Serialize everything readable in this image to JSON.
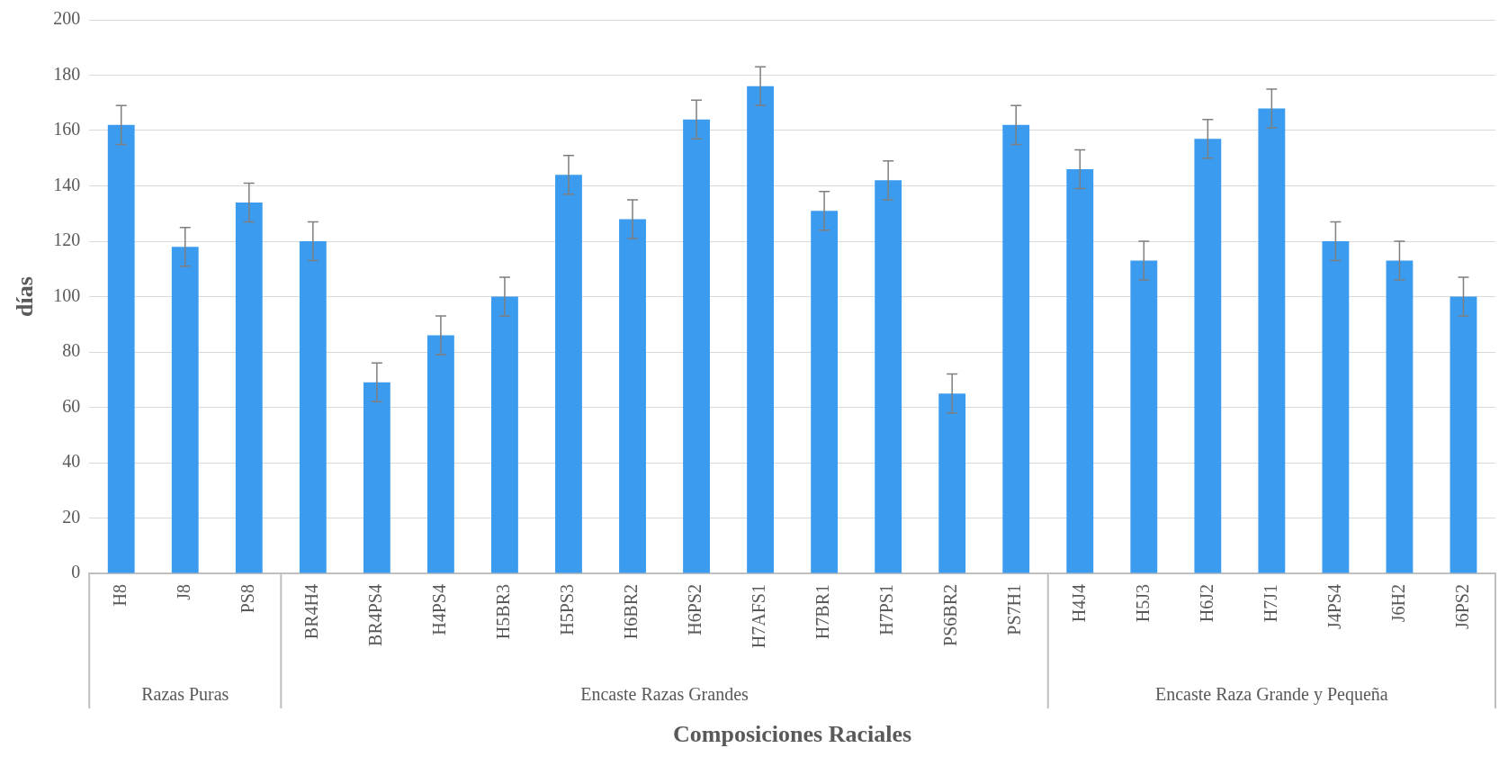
{
  "chart_data": {
    "type": "bar",
    "ylabel": "días",
    "xlabel": "Composiciones Raciales",
    "categories": [
      "H8",
      "J8",
      "PS8",
      "BR4H4",
      "BR4PS4",
      "H4PS4",
      "H5BR3",
      "H5PS3",
      "H6BR2",
      "H6PS2",
      "H7AFS1",
      "H7BR1",
      "H7PS1",
      "PS6BR2",
      "PS7H1",
      "H4J4",
      "H5J3",
      "H6J2",
      "H7J1",
      "J4PS4",
      "J6H2",
      "J6PS2"
    ],
    "values": [
      162,
      118,
      134,
      120,
      69,
      86,
      100,
      144,
      128,
      164,
      176,
      131,
      142,
      65,
      162,
      146,
      113,
      157,
      168,
      120,
      113,
      100
    ],
    "errors": [
      7,
      7,
      7,
      7,
      7,
      7,
      7,
      7,
      7,
      7,
      7,
      7,
      7,
      7,
      7,
      7,
      7,
      7,
      7,
      7,
      7,
      7
    ],
    "color": "#3a9bef",
    "ylim": [
      0,
      200
    ],
    "yticks": [
      0,
      20,
      40,
      60,
      80,
      100,
      120,
      140,
      160,
      180,
      200
    ],
    "grid": "y",
    "annotations": [
      "Razas Puras",
      "Encaste Razas Grandes",
      "Encaste Raza Grande y Pequeña"
    ]
  }
}
